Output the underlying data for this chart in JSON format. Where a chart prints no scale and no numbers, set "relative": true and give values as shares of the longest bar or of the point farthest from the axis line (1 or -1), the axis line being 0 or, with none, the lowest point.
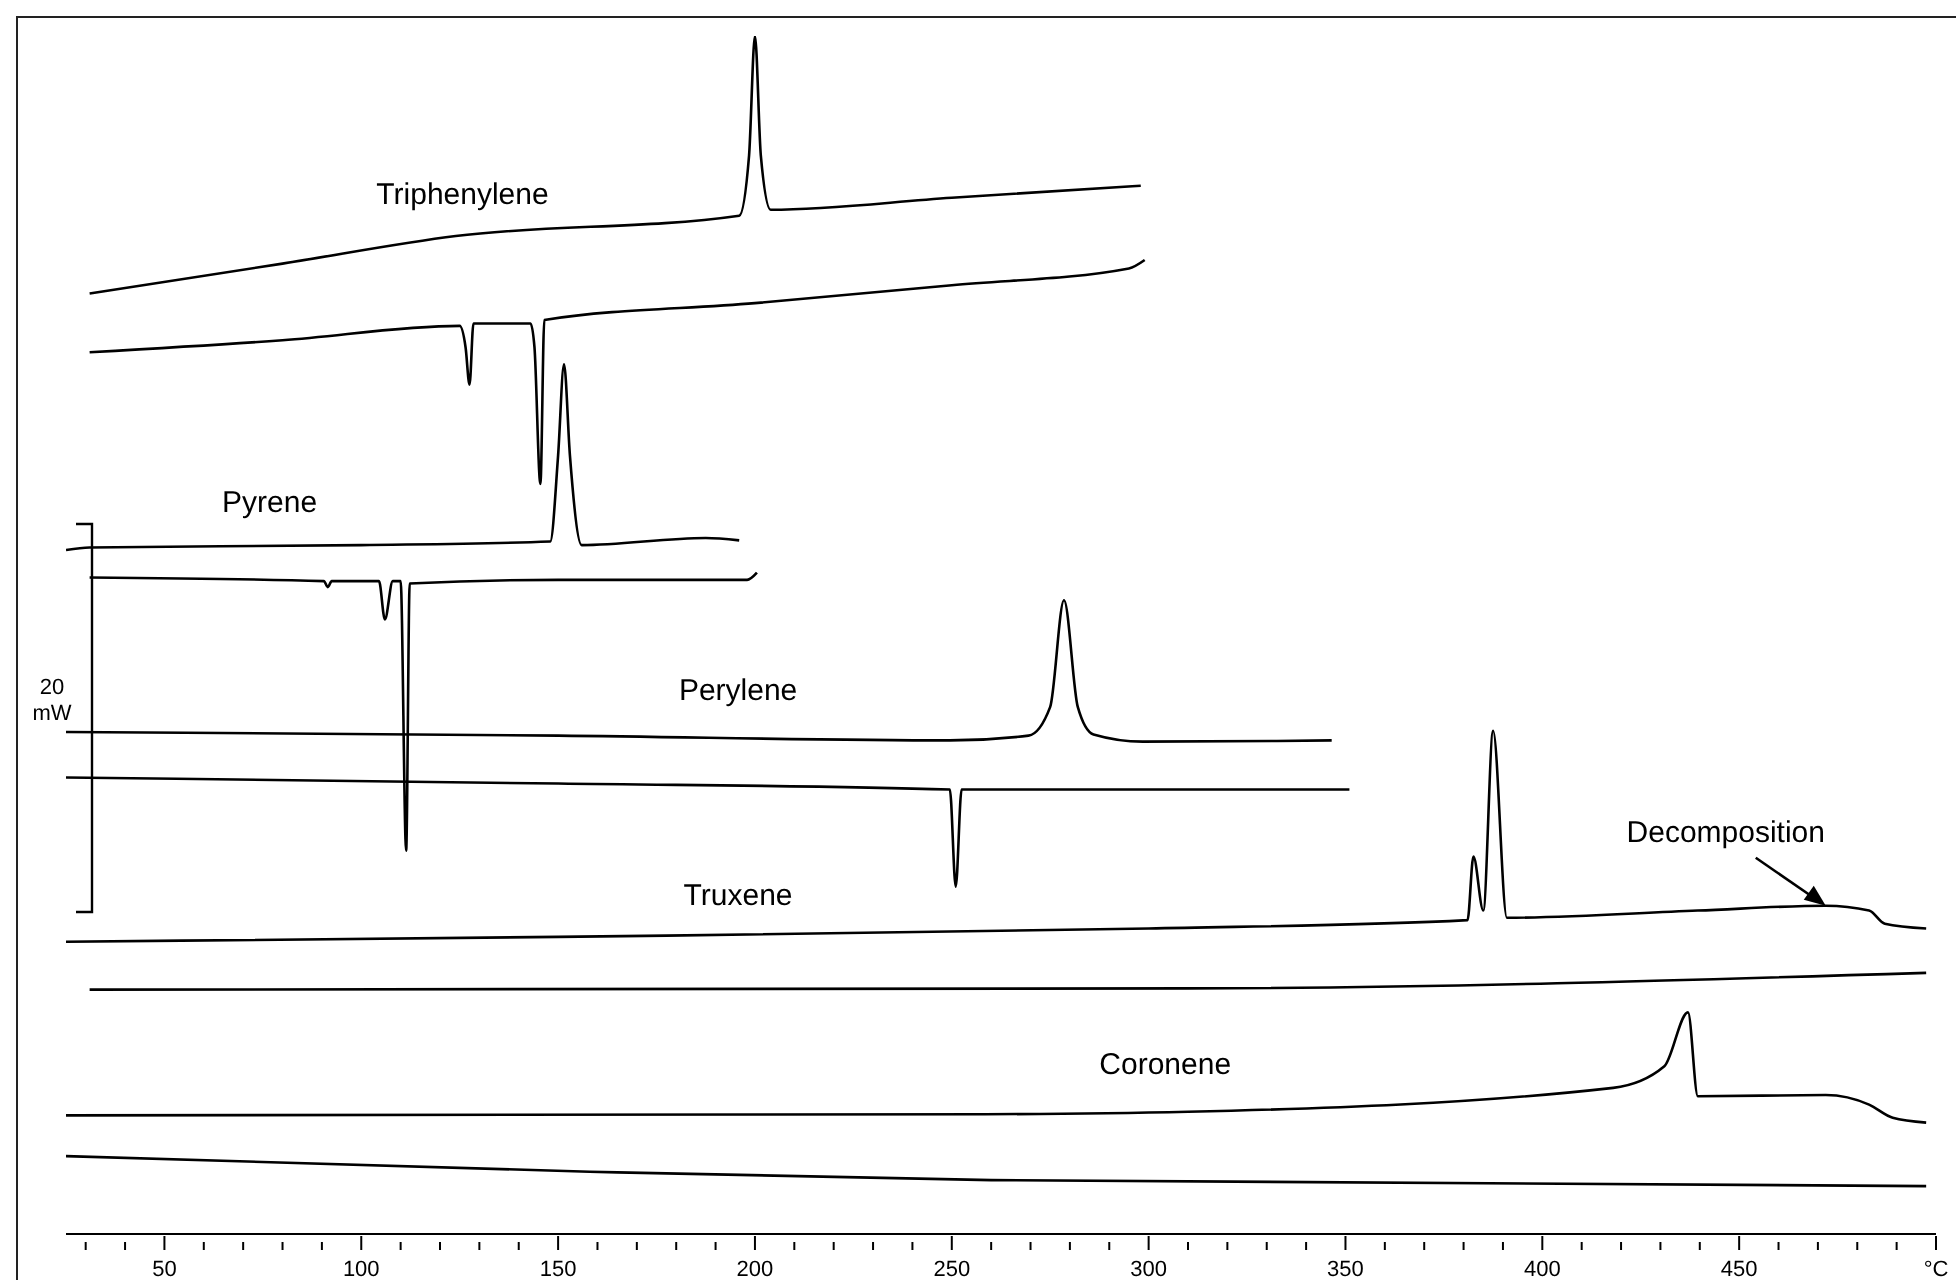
{
  "chart_data": {
    "type": "line",
    "relative": true,
    "marker": "none",
    "line_style": "solid",
    "xlim": [
      25,
      500
    ],
    "xticks": [
      {
        "value": 30,
        "label": null
      },
      {
        "value": 40,
        "label": null
      },
      50,
      {
        "value": 60,
        "label": null
      },
      {
        "value": 70,
        "label": null
      },
      {
        "value": 80,
        "label": null
      },
      {
        "value": 90,
        "label": null
      },
      100,
      {
        "value": 110,
        "label": null
      },
      {
        "value": 120,
        "label": null
      },
      {
        "value": 130,
        "label": null
      },
      {
        "value": 140,
        "label": null
      },
      150,
      {
        "value": 160,
        "label": null
      },
      {
        "value": 170,
        "label": null
      },
      {
        "value": 180,
        "label": null
      },
      {
        "value": 190,
        "label": null
      },
      200,
      {
        "value": 210,
        "label": null
      },
      {
        "value": 220,
        "label": null
      },
      {
        "value": 230,
        "label": null
      },
      {
        "value": 240,
        "label": null
      },
      250,
      {
        "value": 260,
        "label": null
      },
      {
        "value": 270,
        "label": null
      },
      {
        "value": 280,
        "label": null
      },
      {
        "value": 290,
        "label": null
      },
      300,
      {
        "value": 310,
        "label": null
      },
      {
        "value": 320,
        "label": null
      },
      {
        "value": 330,
        "label": null
      },
      {
        "value": 340,
        "label": null
      },
      350,
      {
        "value": 360,
        "label": null
      },
      {
        "value": 370,
        "label": null
      },
      {
        "value": 380,
        "label": null
      },
      {
        "value": 390,
        "label": null
      },
      400,
      {
        "value": 410,
        "label": null
      },
      {
        "value": 420,
        "label": null
      },
      {
        "value": 430,
        "label": null
      },
      {
        "value": 440,
        "label": null
      },
      450,
      {
        "value": 460,
        "label": null
      },
      {
        "value": 470,
        "label": null
      },
      {
        "value": 480,
        "label": null
      },
      {
        "value": 490,
        "label": null
      },
      {
        "value": 500,
        "label": "°C"
      }
    ],
    "series": [
      {
        "name": "Triphenylene",
        "color": "#000000",
        "x": [
          31,
          80,
          124,
          196,
          198.5,
          200,
          201.5,
          204,
          250,
          298
        ],
        "values": [
          0.785,
          0.81,
          0.833,
          0.85,
          0.9,
          1,
          0.9,
          0.855,
          0.865,
          0.875
        ]
      },
      {
        "color": "#000000",
        "x": [
          31,
          80,
          125,
          126.5,
          127.5,
          128.5,
          143,
          144,
          145.5,
          146.5,
          200,
          250,
          295,
          299
        ],
        "values": [
          0.736,
          0.746,
          0.758,
          0.74,
          0.709,
          0.76,
          0.76,
          0.74,
          0.626,
          0.763,
          0.777,
          0.792,
          0.806,
          0.813
        ]
      },
      {
        "name": "Pyrene",
        "color": "#000000",
        "x": [
          25,
          31,
          100,
          148,
          150,
          151.5,
          153,
          156,
          187.5,
          196
        ],
        "values": [
          0.571,
          0.573,
          0.575,
          0.578,
          0.65,
          0.726,
          0.65,
          0.575,
          0.581,
          0.579
        ]
      },
      {
        "color": "#000000",
        "x": [
          31,
          90.5,
          91.5,
          92.5,
          104.5,
          106,
          108,
          110,
          111.4,
          112.3,
          150,
          198,
          200.5
        ],
        "values": [
          0.548,
          0.545,
          0.54,
          0.545,
          0.545,
          0.513,
          0.545,
          0.545,
          0.32,
          0.543,
          0.546,
          0.546,
          0.552
        ]
      },
      {
        "name": "Perylene",
        "color": "#000000",
        "x": [
          25,
          150,
          249.5,
          269.5,
          275,
          278.5,
          282,
          286,
          298.5,
          346.5
        ],
        "values": [
          0.419,
          0.416,
          0.412,
          0.416,
          0.44,
          0.529,
          0.44,
          0.417,
          0.411,
          0.412
        ]
      },
      {
        "color": "#000000",
        "x": [
          25,
          150,
          249.5,
          251,
          252.5,
          300,
          351
        ],
        "values": [
          0.381,
          0.376,
          0.371,
          0.29,
          0.371,
          0.371,
          0.371
        ]
      },
      {
        "name": "Truxene",
        "color": "#000000",
        "x": [
          25,
          150,
          300,
          381,
          382.5,
          385,
          387.5,
          391,
          439.5,
          472,
          483,
          487,
          497.5
        ],
        "values": [
          0.244,
          0.248,
          0.255,
          0.262,
          0.315,
          0.27,
          0.42,
          0.264,
          0.27,
          0.274,
          0.27,
          0.259,
          0.255
        ]
      },
      {
        "color": "#000000",
        "x": [
          31,
          310,
          497.5
        ],
        "values": [
          0.204,
          0.205,
          0.218
        ]
      },
      {
        "name": "Coronene",
        "color": "#000000",
        "x": [
          25,
          258.5,
          310,
          418,
          431,
          437,
          439.5,
          472,
          483,
          489,
          497.5
        ],
        "values": [
          0.099,
          0.1,
          0.102,
          0.122,
          0.14,
          0.185,
          0.115,
          0.116,
          0.108,
          0.097,
          0.093
        ]
      },
      {
        "color": "#000000",
        "x": [
          25,
          158,
          260,
          497.5
        ],
        "values": [
          0.065,
          0.052,
          0.045,
          0.04
        ]
      }
    ],
    "annotations": [
      {
        "text": "Decomposition",
        "x": 472,
        "y": 0.274
      },
      "20 mW"
    ]
  }
}
